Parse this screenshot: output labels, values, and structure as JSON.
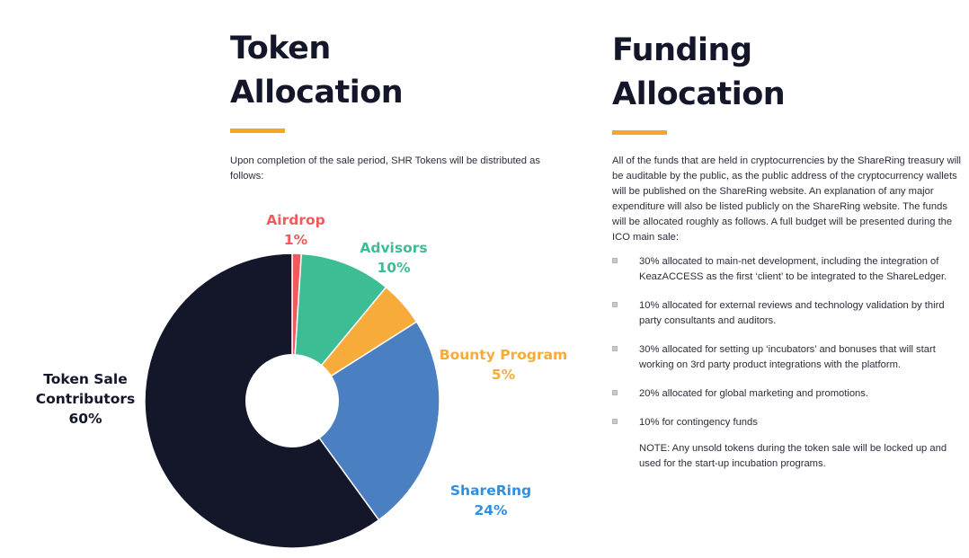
{
  "token_section": {
    "title_line1": "Token",
    "title_line2": "Allocation",
    "intro": "Upon completion of the sale period, SHR Tokens will be distributed as follows:"
  },
  "funding_section": {
    "title_line1": "Funding",
    "title_line2": "Allocation",
    "intro": "All of the funds that are held in cryptocurrencies by the ShareRing treasury will be auditable by the public, as the public address of the cryptocurrency wallets will be published on the ShareRing website. An explanation of any major expenditure will also be listed publicly on the ShareRing website. The funds will be allocated roughly as follows. A full budget will be presented during the ICO main sale:",
    "items": [
      "30% allocated to main-net development, including the integration of KeazACCESS as the first ‘client’ to be integrated to the ShareLedger.",
      "10% allocated for external reviews and technology validation by third party consultants and auditors.",
      "30% allocated for setting up ‘incubators’ and bonuses that will start working on 3rd party product integrations with the platform.",
      "20% allocated for global marketing and promotions.",
      "10% for contingency funds"
    ],
    "note": "NOTE: Any unsold tokens during the token sale will be locked up and used for the start-up incubation programs."
  },
  "colors": {
    "accent": "#f5a623",
    "dark": "#14172a"
  },
  "chart_data": {
    "type": "pie",
    "donut": true,
    "title": "",
    "slices": [
      {
        "label": "Airdrop",
        "value": 1,
        "value_label": "1%",
        "color": "#f05a5a"
      },
      {
        "label": "Advisors",
        "value": 10,
        "value_label": "10%",
        "color": "#3dbd94"
      },
      {
        "label": "Bounty Program",
        "value": 5,
        "value_label": "5%",
        "color": "#f7ab3b"
      },
      {
        "label": "ShareRing",
        "value": 24,
        "value_label": "24%",
        "color": "#4a7fc1"
      },
      {
        "label": "Token Sale Contributors",
        "label_lines": [
          "Token Sale",
          "Contributors"
        ],
        "value": 60,
        "value_label": "60%",
        "color": "#14172a"
      }
    ],
    "label_colors": {
      "Airdrop": "#f05a5a",
      "Advisors": "#3dbd94",
      "Bounty Program": "#f7ab3b",
      "ShareRing": "#2f8fe0",
      "Token Sale Contributors": "#14172a"
    }
  }
}
